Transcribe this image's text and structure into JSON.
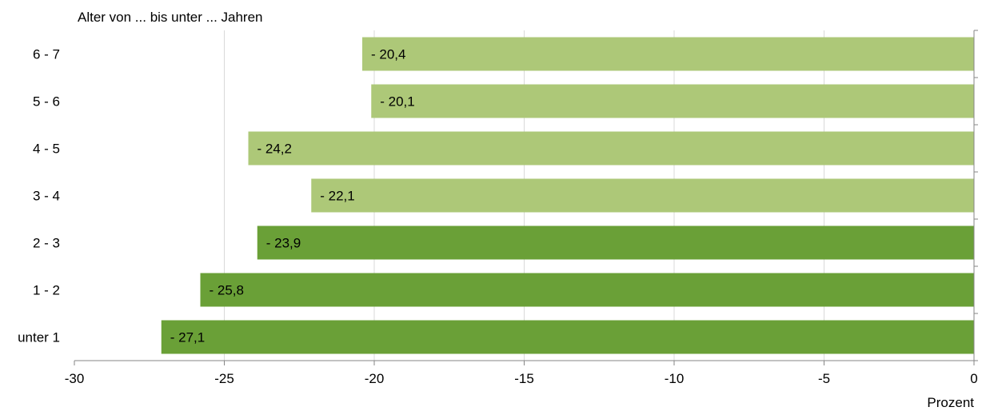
{
  "chart_data": {
    "type": "bar",
    "orientation": "horizontal",
    "ylabel": "Alter von ... bis unter ... Jahren",
    "xlabel": "Prozent",
    "categories": [
      "6 - 7",
      "5 - 6",
      "4 - 5",
      "3 - 4",
      "2 - 3",
      "1 - 2",
      "unter 1"
    ],
    "values": [
      -20.4,
      -20.1,
      -24.2,
      -22.1,
      -23.9,
      -25.8,
      -27.1
    ],
    "data_labels": [
      "- 20,4",
      "- 20,1",
      "- 24,2",
      "- 22,1",
      "- 23,9",
      "- 25,8",
      "- 27,1"
    ],
    "xlim": [
      -30,
      0
    ],
    "x_ticks": [
      -30,
      -25,
      -20,
      -15,
      -10,
      -5,
      0
    ],
    "x_tick_labels": [
      "-30",
      "-25",
      "-20",
      "-15",
      "-10",
      "-5",
      "0"
    ],
    "grid": true,
    "legend": "none",
    "colors": {
      "light": "#adc878",
      "dark": "#6aa037",
      "grid": "#d9d9d9",
      "axis": "#868686"
    },
    "bar_colors": [
      "#adc878",
      "#adc878",
      "#adc878",
      "#adc878",
      "#6aa037",
      "#6aa037",
      "#6aa037"
    ]
  }
}
